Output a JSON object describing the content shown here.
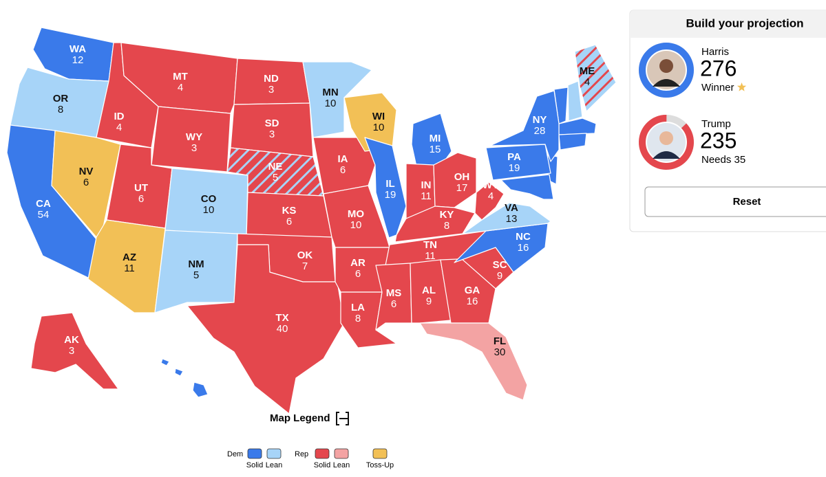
{
  "map": {
    "states": [
      {
        "abbr": "WA",
        "votes": 12,
        "color": "#3a7aea"
      },
      {
        "abbr": "OR",
        "votes": 8,
        "color": "#a7d4f8"
      },
      {
        "abbr": "CA",
        "votes": 54,
        "color": "#3a7aea"
      },
      {
        "abbr": "NV",
        "votes": 6,
        "color": "#f2c056"
      },
      {
        "abbr": "ID",
        "votes": 4,
        "color": "#e4474d"
      },
      {
        "abbr": "MT",
        "votes": 4,
        "color": "#e4474d"
      },
      {
        "abbr": "WY",
        "votes": 3,
        "color": "#e4474d"
      },
      {
        "abbr": "UT",
        "votes": 6,
        "color": "#e4474d"
      },
      {
        "abbr": "AZ",
        "votes": 11,
        "color": "#f2c056"
      },
      {
        "abbr": "CO",
        "votes": 10,
        "color": "#a7d4f8"
      },
      {
        "abbr": "NM",
        "votes": 5,
        "color": "#a7d4f8"
      },
      {
        "abbr": "ND",
        "votes": 3,
        "color": "#e4474d"
      },
      {
        "abbr": "SD",
        "votes": 3,
        "color": "#e4474d"
      },
      {
        "abbr": "NE",
        "votes": 5,
        "color": "#e4474d",
        "stripe": "#a7d4f8"
      },
      {
        "abbr": "KS",
        "votes": 6,
        "color": "#e4474d"
      },
      {
        "abbr": "OK",
        "votes": 7,
        "color": "#e4474d"
      },
      {
        "abbr": "TX",
        "votes": 40,
        "color": "#e4474d"
      },
      {
        "abbr": "MN",
        "votes": 10,
        "color": "#a7d4f8"
      },
      {
        "abbr": "IA",
        "votes": 6,
        "color": "#e4474d"
      },
      {
        "abbr": "MO",
        "votes": 10,
        "color": "#e4474d"
      },
      {
        "abbr": "AR",
        "votes": 6,
        "color": "#e4474d"
      },
      {
        "abbr": "LA",
        "votes": 8,
        "color": "#e4474d"
      },
      {
        "abbr": "WI",
        "votes": 10,
        "color": "#f2c056"
      },
      {
        "abbr": "IL",
        "votes": 19,
        "color": "#3a7aea"
      },
      {
        "abbr": "MI",
        "votes": 15,
        "color": "#3a7aea"
      },
      {
        "abbr": "IN",
        "votes": 11,
        "color": "#e4474d"
      },
      {
        "abbr": "OH",
        "votes": 17,
        "color": "#e4474d"
      },
      {
        "abbr": "KY",
        "votes": 8,
        "color": "#e4474d"
      },
      {
        "abbr": "TN",
        "votes": 11,
        "color": "#e4474d"
      },
      {
        "abbr": "MS",
        "votes": 6,
        "color": "#e4474d"
      },
      {
        "abbr": "AL",
        "votes": 9,
        "color": "#e4474d"
      },
      {
        "abbr": "GA",
        "votes": 16,
        "color": "#e4474d"
      },
      {
        "abbr": "FL",
        "votes": 30,
        "color": "#f3a3a3"
      },
      {
        "abbr": "SC",
        "votes": 9,
        "color": "#e4474d"
      },
      {
        "abbr": "NC",
        "votes": 16,
        "color": "#3a7aea"
      },
      {
        "abbr": "VA",
        "votes": 13,
        "color": "#a7d4f8"
      },
      {
        "abbr": "WV",
        "votes": 4,
        "color": "#e4474d"
      },
      {
        "abbr": "PA",
        "votes": 19,
        "color": "#3a7aea"
      },
      {
        "abbr": "NY",
        "votes": 28,
        "color": "#3a7aea"
      },
      {
        "abbr": "ME",
        "votes": 4,
        "color": "#a7d4f8",
        "stripe": "#e4474d"
      },
      {
        "abbr": "AK",
        "votes": 3,
        "color": "#e4474d"
      }
    ]
  },
  "legend": {
    "title": "Map Legend",
    "groups": [
      {
        "name": "Dem",
        "items": [
          {
            "label": "Solid",
            "color": "#3a7aea"
          },
          {
            "label": "Lean",
            "color": "#a7d4f8"
          }
        ]
      },
      {
        "name": "Rep",
        "items": [
          {
            "label": "Solid",
            "color": "#e4474d"
          },
          {
            "label": "Lean",
            "color": "#f3a3a3"
          }
        ]
      },
      {
        "items": [
          {
            "label": "Toss-Up",
            "color": "#f2c056"
          }
        ]
      }
    ]
  },
  "panel": {
    "title": "Build your projection",
    "candidates": [
      {
        "name": "Harris",
        "votes": 276,
        "status": "Winner",
        "color": "#3a7aea"
      },
      {
        "name": "Trump",
        "votes": 235,
        "status": "Needs 35",
        "color": "#e4474d"
      }
    ],
    "button": "Reset"
  }
}
